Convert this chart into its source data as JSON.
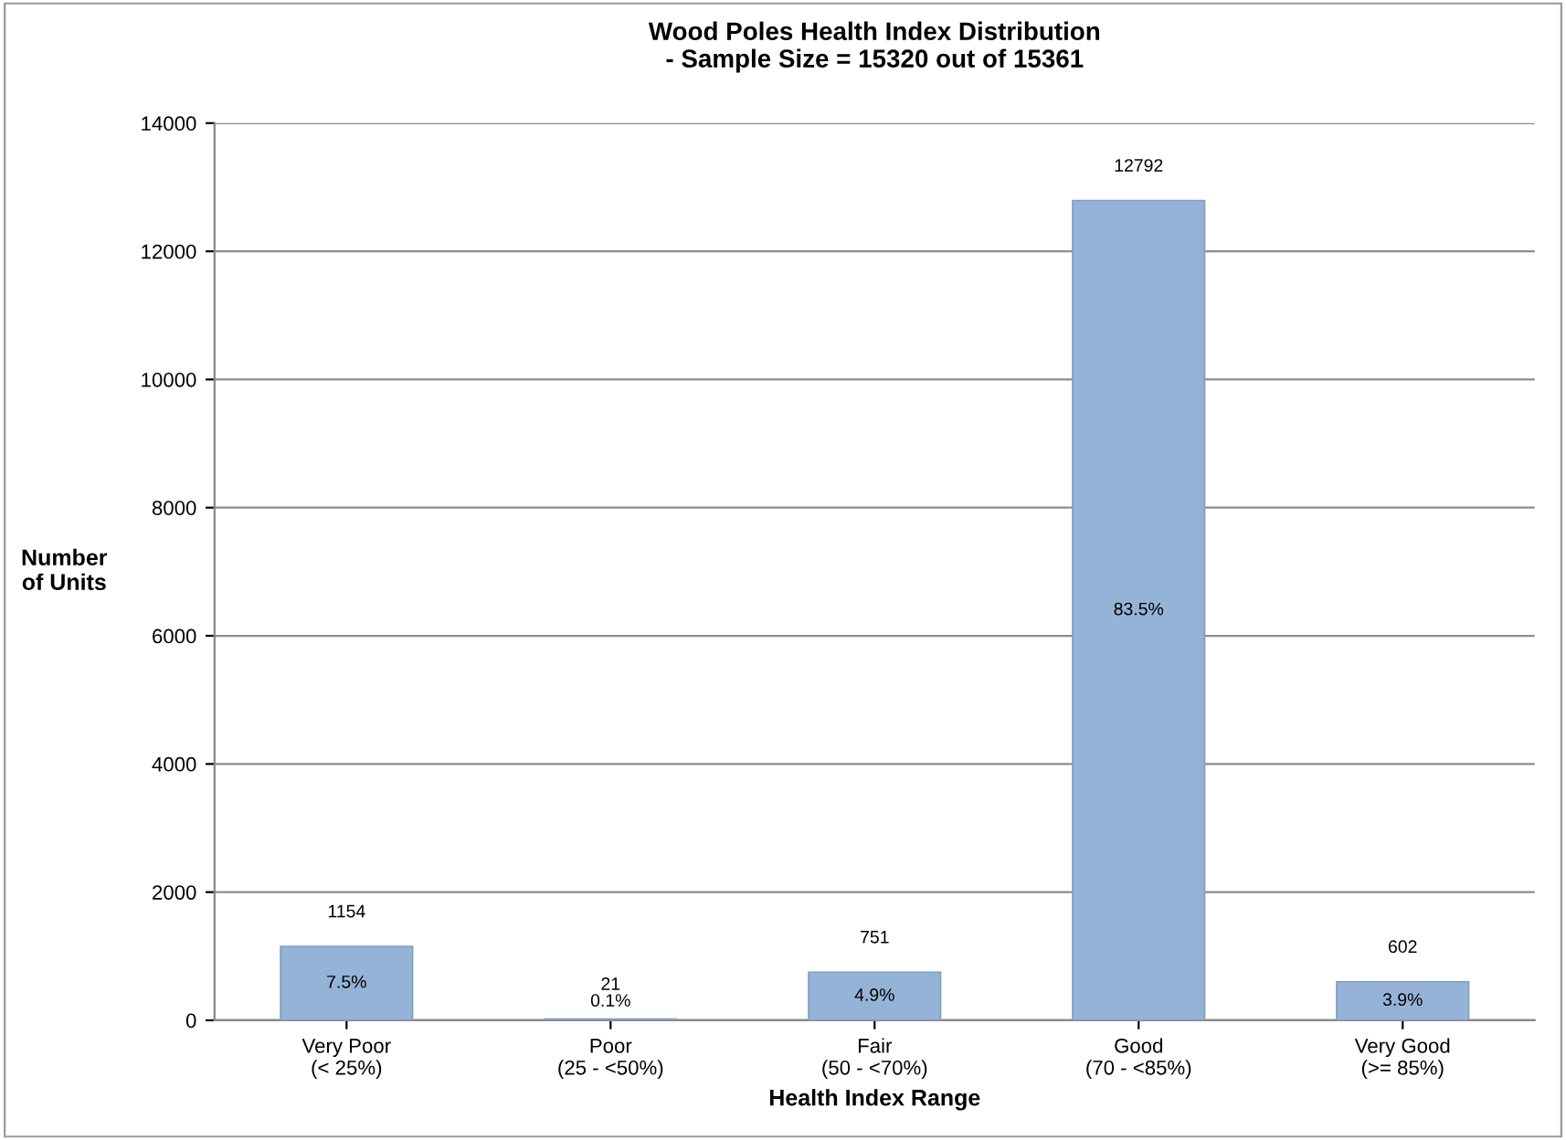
{
  "chart_data": {
    "type": "bar",
    "title": "Wood Poles Health Index Distribution\n- Sample Size = 15320 out of 15361",
    "xlabel": "Health Index Range",
    "ylabel": "Number\nof Units",
    "categories": [
      "Very Poor\n(< 25%)",
      "Poor\n(25 - <50%)",
      "Fair\n(50 - <70%)",
      "Good\n(70 - <85%)",
      "Very Good\n(>= 85%)"
    ],
    "values": [
      1154,
      21,
      751,
      12792,
      602
    ],
    "color": "#95b3d7",
    "ylim": [
      0,
      14000
    ],
    "yticks": [
      0,
      2000,
      4000,
      6000,
      8000,
      10000,
      12000,
      14000
    ],
    "grid": "y",
    "data_labels": true,
    "annotations": [
      "7.5%",
      "0.1%",
      "4.9%",
      "83.5%",
      "3.9%"
    ]
  }
}
